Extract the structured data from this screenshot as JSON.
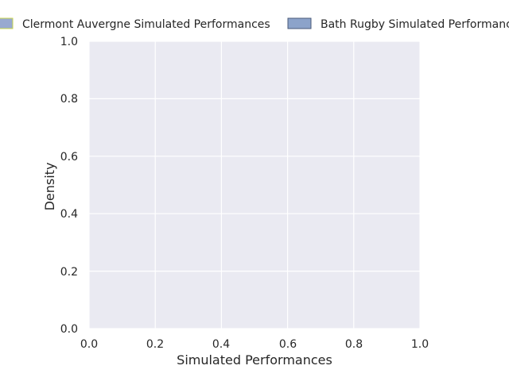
{
  "chart_data": {
    "type": "area",
    "title": "",
    "xlabel": "Simulated Performances",
    "ylabel": "Density",
    "xlim": [
      0.0,
      1.0
    ],
    "ylim": [
      0.0,
      1.0
    ],
    "xticks": [
      "0.0",
      "0.2",
      "0.4",
      "0.6",
      "0.8",
      "1.0"
    ],
    "yticks": [
      "0.0",
      "0.2",
      "0.4",
      "0.6",
      "0.8",
      "1.0"
    ],
    "grid": true,
    "legend_position": "top",
    "series": [
      {
        "name": "Clermont Auvergne Simulated Performances",
        "color": "#8da0cb",
        "edge_color": "#c9d64a",
        "values": []
      },
      {
        "name": "Bath Rugby Simulated Performances",
        "color": "#8099c4",
        "edge_color": "#4a5a78",
        "values": []
      }
    ],
    "background_color": "#eaeaf2",
    "grid_color": "#ffffff"
  }
}
